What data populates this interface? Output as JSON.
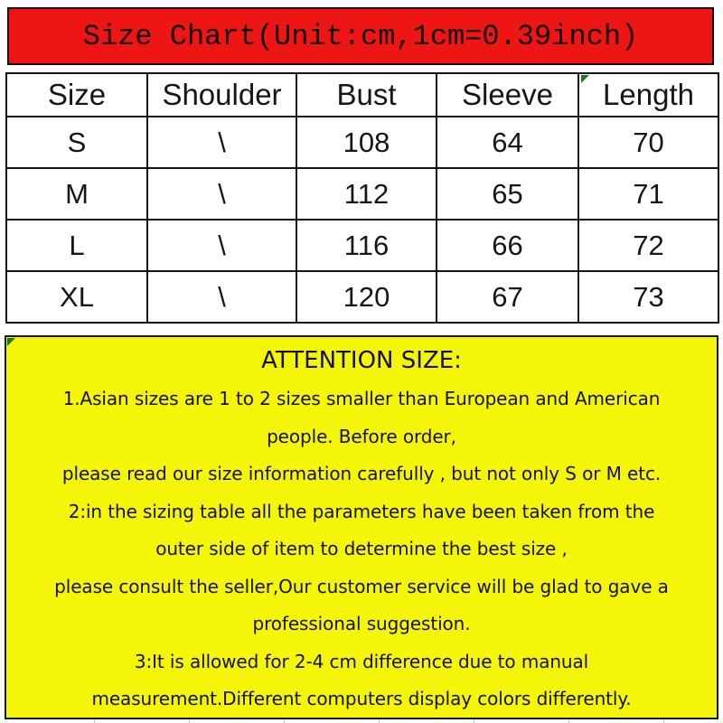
{
  "banner": {
    "title": "Size Chart(Unit:cm,1cm=0.39inch)"
  },
  "size_table": {
    "headers": [
      "Size",
      "Shoulder",
      "Bust",
      "Sleeve",
      "Length"
    ],
    "rows": [
      [
        "S",
        "\\",
        "108",
        "64",
        "70"
      ],
      [
        "M",
        "\\",
        "112",
        "65",
        "71"
      ],
      [
        "L",
        "\\",
        "116",
        "66",
        "72"
      ],
      [
        "XL",
        "\\",
        "120",
        "67",
        "73"
      ]
    ]
  },
  "attention": {
    "title": "ATTENTION SIZE:",
    "lines": [
      "1.Asian sizes are 1 to 2 sizes smaller than European and American",
      "people. Before order,",
      "please read our size information carefully ,  but not only S or M etc.",
      "2:in the sizing table all the parameters have been taken from the",
      "outer side of item to determine the best size ,",
      "please consult the seller,Our customer service will be glad to gave a",
      "professional suggestion.",
      "3:It is allowed for 2-4 cm difference due to manual",
      "measurement.Different computers display colors differently."
    ]
  },
  "colors": {
    "banner_bg": "#ee1515",
    "attention_bg": "#f5f50a",
    "marker_green": "#1e7a1e",
    "border_dark": "#141414",
    "text_dark": "#161616"
  }
}
